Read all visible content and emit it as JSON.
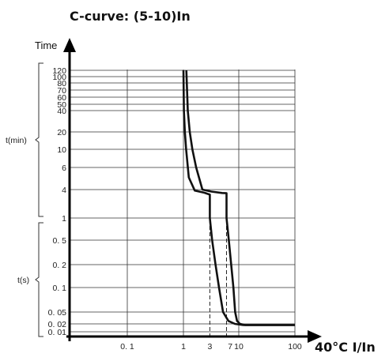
{
  "chart_data": {
    "type": "line",
    "title": "C-curve: (5-10)In",
    "ylabel": "Time",
    "xlabel": "40°C I/In",
    "x_scale": "log",
    "y_scale": "log",
    "xlim": [
      0.01,
      100
    ],
    "grid": true,
    "x_ticks": [
      {
        "value": 0.1,
        "label": "0. 1"
      },
      {
        "value": 1,
        "label": "1"
      },
      {
        "value": 3,
        "label": "3"
      },
      {
        "value": 7,
        "label": "7"
      },
      {
        "value": 10,
        "label": "10"
      },
      {
        "value": 100,
        "label": "100"
      }
    ],
    "y_ticks": [
      {
        "seconds": 7200,
        "label": "120"
      },
      {
        "seconds": 6000,
        "label": "100"
      },
      {
        "seconds": 4800,
        "label": "80"
      },
      {
        "seconds": 4200,
        "label": "70"
      },
      {
        "seconds": 3600,
        "label": "60"
      },
      {
        "seconds": 3000,
        "label": "50"
      },
      {
        "seconds": 2400,
        "label": "40"
      },
      {
        "seconds": 1200,
        "label": "20"
      },
      {
        "seconds": 600,
        "label": "10"
      },
      {
        "seconds": 360,
        "label": "6"
      },
      {
        "seconds": 240,
        "label": "4"
      },
      {
        "seconds": 1,
        "label": "1"
      },
      {
        "seconds": 0.5,
        "label": "0. 5"
      },
      {
        "seconds": 0.2,
        "label": "0. 2"
      },
      {
        "seconds": 0.1,
        "label": "0. 1"
      },
      {
        "seconds": 0.05,
        "label": "0. 05"
      },
      {
        "seconds": 0.02,
        "label": "0. 02"
      },
      {
        "seconds": 0.01,
        "label": "0. 01"
      }
    ],
    "y_groups": [
      {
        "label": "t(min)"
      },
      {
        "label": "t(s)"
      }
    ],
    "series": [
      {
        "points": [
          [
            1.0,
            7200
          ],
          [
            1.02,
            2400
          ],
          [
            1.06,
            1200
          ],
          [
            1.12,
            600
          ],
          [
            1.25,
            300
          ],
          [
            1.6,
            200
          ],
          [
            2.4,
            130
          ],
          [
            3,
            90
          ],
          [
            3,
            1
          ],
          [
            3.3,
            0.5
          ],
          [
            3.8,
            0.2
          ],
          [
            4.4,
            0.1
          ],
          [
            5.2,
            0.05
          ],
          [
            6.5,
            0.025
          ],
          [
            8.5,
            0.02
          ],
          [
            12,
            0.018
          ],
          [
            100,
            0.018
          ]
        ]
      },
      {
        "points": [
          [
            1.13,
            7200
          ],
          [
            1.2,
            2400
          ],
          [
            1.3,
            1200
          ],
          [
            1.45,
            600
          ],
          [
            1.7,
            360
          ],
          [
            2.2,
            240
          ],
          [
            3.2,
            165
          ],
          [
            5,
            125
          ],
          [
            6,
            120
          ],
          [
            6,
            1
          ],
          [
            6.6,
            0.5
          ],
          [
            7.3,
            0.2
          ],
          [
            8,
            0.1
          ],
          [
            8.6,
            0.05
          ],
          [
            9.3,
            0.025
          ],
          [
            10.5,
            0.02
          ],
          [
            13,
            0.018
          ],
          [
            100,
            0.018
          ]
        ]
      }
    ],
    "reference_lines": [
      {
        "orientation": "vertical",
        "style": "dashed",
        "x": 3
      },
      {
        "orientation": "vertical",
        "style": "dashed",
        "x": 6
      }
    ]
  }
}
